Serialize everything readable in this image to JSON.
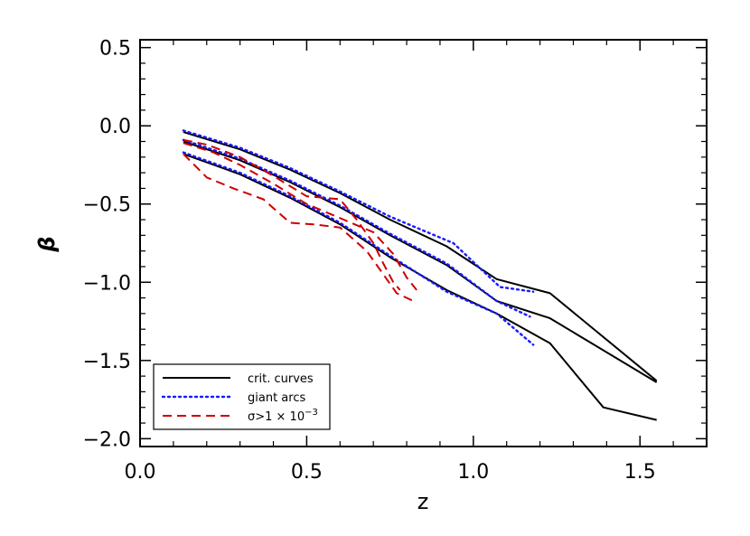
{
  "chart_data": {
    "type": "line",
    "xlabel": "z",
    "ylabel": "β",
    "xlim": [
      0.0,
      1.7
    ],
    "ylim": [
      -2.05,
      0.55
    ],
    "x_ticks": [
      0.0,
      0.5,
      1.0,
      1.5
    ],
    "x_tick_labels": [
      "0.0",
      "0.5",
      "1.0",
      "1.5"
    ],
    "y_ticks": [
      0.5,
      0.0,
      -0.5,
      -1.0,
      -1.5,
      -2.0
    ],
    "y_tick_labels": [
      "0.5",
      "0.0",
      "−0.5",
      "−1.0",
      "−1.5",
      "−2.0"
    ],
    "grid": false,
    "legend": {
      "placement": "bottom-left",
      "entries": [
        {
          "label": "crit. curves",
          "style": "solid",
          "color": "#000000"
        },
        {
          "label": "giant arcs",
          "style": "dotted",
          "color": "#1a1aff"
        },
        {
          "label": "σ>1 × 10",
          "exponent": "−3",
          "style": "dashed",
          "color": "#cc0000"
        }
      ]
    },
    "series": [
      {
        "group": "crit. curves",
        "style": "solid",
        "color": "#000000",
        "x": [
          0.13,
          0.3,
          0.45,
          0.6,
          0.75,
          0.92,
          1.07,
          1.23,
          1.55
        ],
        "y": [
          -0.04,
          -0.15,
          -0.28,
          -0.43,
          -0.6,
          -0.77,
          -0.98,
          -1.07,
          -1.63
        ]
      },
      {
        "group": "crit. curves",
        "style": "solid",
        "color": "#000000",
        "x": [
          0.13,
          0.3,
          0.45,
          0.6,
          0.75,
          0.92,
          1.07,
          1.23,
          1.55
        ],
        "y": [
          -0.1,
          -0.22,
          -0.36,
          -0.52,
          -0.7,
          -0.89,
          -1.12,
          -1.23,
          -1.64
        ]
      },
      {
        "group": "crit. curves",
        "style": "solid",
        "color": "#000000",
        "x": [
          0.13,
          0.3,
          0.45,
          0.6,
          0.75,
          0.92,
          1.07,
          1.23,
          1.39,
          1.55
        ],
        "y": [
          -0.18,
          -0.31,
          -0.46,
          -0.63,
          -0.84,
          -1.05,
          -1.2,
          -1.39,
          -1.8,
          -1.88
        ]
      },
      {
        "group": "giant arcs",
        "style": "dotted",
        "color": "#1a1aff",
        "x": [
          0.13,
          0.3,
          0.45,
          0.6,
          0.75,
          0.94,
          1.08,
          1.18
        ],
        "y": [
          -0.03,
          -0.14,
          -0.27,
          -0.42,
          -0.58,
          -0.75,
          -1.03,
          -1.06
        ]
      },
      {
        "group": "giant arcs",
        "style": "dotted",
        "color": "#1a1aff",
        "x": [
          0.13,
          0.3,
          0.45,
          0.6,
          0.75,
          0.92,
          1.07,
          1.17
        ],
        "y": [
          -0.09,
          -0.21,
          -0.35,
          -0.51,
          -0.69,
          -0.88,
          -1.12,
          -1.22
        ]
      },
      {
        "group": "giant arcs",
        "style": "dotted",
        "color": "#1a1aff",
        "x": [
          0.13,
          0.3,
          0.45,
          0.6,
          0.75,
          0.92,
          1.07,
          1.18
        ],
        "y": [
          -0.17,
          -0.3,
          -0.45,
          -0.62,
          -0.83,
          -1.06,
          -1.2,
          -1.4
        ]
      },
      {
        "group": "σ>1 × 10⁻³",
        "style": "dashed",
        "color": "#cc0000",
        "x": [
          0.13,
          0.2,
          0.3,
          0.4,
          0.5,
          0.6,
          0.65,
          0.7,
          0.73,
          0.76,
          0.78
        ],
        "y": [
          -0.09,
          -0.12,
          -0.2,
          -0.32,
          -0.45,
          -0.47,
          -0.6,
          -0.75,
          -0.88,
          -1.0,
          -1.05
        ]
      },
      {
        "group": "σ>1 × 10⁻³",
        "style": "dashed",
        "color": "#cc0000",
        "x": [
          0.13,
          0.22,
          0.3,
          0.4,
          0.5,
          0.6,
          0.7,
          0.76,
          0.8,
          0.83
        ],
        "y": [
          -0.11,
          -0.17,
          -0.25,
          -0.37,
          -0.5,
          -0.59,
          -0.68,
          -0.82,
          -0.97,
          -1.05
        ]
      },
      {
        "group": "σ>1 × 10⁻³",
        "style": "dashed",
        "color": "#cc0000",
        "x": [
          0.13,
          0.2,
          0.28,
          0.37,
          0.45,
          0.52,
          0.6,
          0.68,
          0.72,
          0.77,
          0.82
        ],
        "y": [
          -0.18,
          -0.33,
          -0.4,
          -0.47,
          -0.62,
          -0.63,
          -0.65,
          -0.8,
          -0.92,
          -1.07,
          -1.12
        ]
      }
    ]
  }
}
